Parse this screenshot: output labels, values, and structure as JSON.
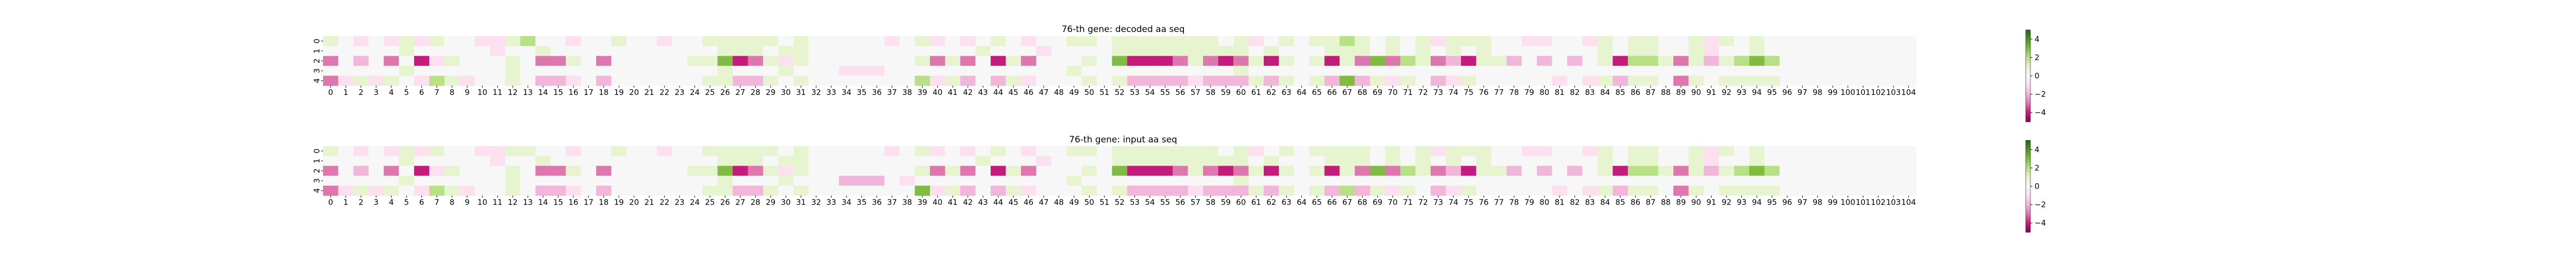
{
  "chart_data": [
    {
      "type": "heatmap",
      "title": "76-th gene: decoded aa seq",
      "xlabel": "",
      "ylabel": "",
      "x_ticks": [
        "0",
        "1",
        "2",
        "3",
        "4",
        "5",
        "6",
        "7",
        "8",
        "9",
        "10",
        "11",
        "12",
        "13",
        "14",
        "15",
        "16",
        "17",
        "18",
        "19",
        "20",
        "21",
        "22",
        "23",
        "24",
        "25",
        "26",
        "27",
        "28",
        "29",
        "30",
        "31",
        "32",
        "33",
        "34",
        "35",
        "36",
        "37",
        "38",
        "39",
        "40",
        "41",
        "42",
        "43",
        "44",
        "45",
        "46",
        "47",
        "48",
        "49",
        "50",
        "51",
        "52",
        "53",
        "54",
        "55",
        "56",
        "57",
        "58",
        "59",
        "60",
        "61",
        "62",
        "63",
        "64",
        "65",
        "66",
        "67",
        "68",
        "69",
        "70",
        "71",
        "72",
        "73",
        "74",
        "75",
        "76",
        "77",
        "78",
        "79",
        "80",
        "81",
        "82",
        "83",
        "84",
        "85",
        "86",
        "87",
        "88",
        "89",
        "90",
        "91",
        "92",
        "93",
        "94",
        "95",
        "96",
        "97",
        "98",
        "99",
        "100",
        "101",
        "102",
        "103",
        "104"
      ],
      "y_ticks": [
        "0",
        "1",
        "2",
        "3",
        "4"
      ],
      "colormap": "PiYG",
      "colorbar_ticks": [
        4,
        2,
        0,
        -2,
        -4
      ],
      "vmin": -5,
      "vmax": 5,
      "rows": [
        [
          1,
          0,
          -1,
          0,
          -1,
          1,
          -1,
          1,
          0,
          0,
          -1,
          -1,
          1,
          2,
          0,
          0,
          -1,
          0,
          0,
          1,
          0,
          0,
          -1,
          0,
          0,
          1,
          1,
          1,
          1,
          1,
          0,
          1,
          0,
          0,
          0,
          0,
          0,
          -1,
          0,
          1,
          -1,
          0,
          -1,
          0,
          1,
          0,
          -1,
          0,
          0,
          1,
          1,
          0,
          1,
          1,
          1,
          1,
          1,
          1,
          1,
          0,
          1,
          -1,
          0,
          1,
          0,
          1,
          1,
          2,
          1,
          0,
          1,
          0,
          1,
          -1,
          1,
          1,
          1,
          0,
          0,
          -1,
          -1,
          0,
          0,
          -1,
          1,
          0,
          1,
          1,
          0,
          0,
          1,
          -1,
          1,
          0,
          1,
          0,
          0,
          0,
          0,
          0,
          0,
          0,
          0,
          0,
          0
        ],
        [
          0,
          0,
          0,
          0,
          0,
          1,
          0,
          0,
          0,
          0,
          0,
          -1,
          0,
          0,
          1,
          0,
          0,
          0,
          0,
          0,
          0,
          0,
          0,
          0,
          0,
          0,
          1,
          1,
          1,
          0,
          1,
          1,
          0,
          0,
          0,
          0,
          0,
          0,
          0,
          0,
          0,
          0,
          0,
          1,
          0,
          0,
          0,
          -1,
          0,
          0,
          0,
          0,
          1,
          1,
          1,
          1,
          1,
          1,
          1,
          1,
          1,
          0,
          1,
          0,
          0,
          0,
          1,
          1,
          1,
          0,
          1,
          0,
          1,
          0,
          1,
          0,
          1,
          0,
          0,
          0,
          0,
          0,
          0,
          0,
          1,
          0,
          1,
          1,
          0,
          0,
          1,
          -1,
          0,
          0,
          1,
          0,
          0,
          0,
          0,
          0,
          0,
          0,
          0,
          0,
          0
        ],
        [
          -3,
          0,
          -2,
          0,
          -3,
          0,
          -4,
          -1,
          1,
          0,
          0,
          0,
          1,
          0,
          -3,
          -3,
          1,
          0,
          -3,
          0,
          0,
          0,
          0,
          0,
          1,
          1,
          3,
          -4,
          -3,
          1,
          -1,
          1,
          0,
          0,
          0,
          0,
          0,
          0,
          0,
          1,
          -3,
          1,
          -3,
          0,
          -4,
          1,
          -3,
          0,
          0,
          0,
          1,
          0,
          3,
          -4,
          -4,
          -4,
          -3,
          1,
          -3,
          -4,
          -3,
          1,
          -4,
          1,
          0,
          1,
          -4,
          1,
          -3,
          3,
          -3,
          2,
          1,
          -3,
          -2,
          -4,
          1,
          1,
          -2,
          0,
          -2,
          0,
          -2,
          0,
          1,
          -4,
          2,
          2,
          1,
          -3,
          1,
          -2,
          1,
          2,
          3,
          2,
          0,
          0,
          0,
          0,
          0,
          0,
          0,
          0,
          0
        ],
        [
          0,
          0,
          0,
          0,
          0,
          1,
          0,
          0,
          0,
          0,
          0,
          0,
          1,
          0,
          0,
          0,
          0,
          0,
          0,
          0,
          0,
          0,
          0,
          0,
          0,
          0,
          1,
          0,
          0,
          0,
          1,
          0,
          0,
          0,
          -1,
          -1,
          -1,
          0,
          0,
          0,
          0,
          0,
          0,
          0,
          0,
          0,
          0,
          0,
          0,
          1,
          0,
          0,
          0,
          0,
          0,
          0,
          0,
          0,
          0,
          0,
          1,
          0,
          0,
          0,
          0,
          0,
          0,
          0,
          0,
          0,
          0,
          0,
          0,
          0,
          0,
          0,
          0,
          0,
          0,
          0,
          0,
          0,
          0,
          0,
          0,
          0,
          0,
          0,
          0,
          0,
          0,
          0,
          0,
          0,
          0,
          0,
          0,
          0,
          0,
          0,
          0,
          0,
          0,
          0,
          0
        ],
        [
          -3,
          -1,
          1,
          -1,
          1,
          0,
          -1,
          2,
          1,
          -1,
          0,
          0,
          1,
          0,
          -2,
          -2,
          -1,
          0,
          -2,
          0,
          0,
          0,
          0,
          0,
          0,
          1,
          1,
          -2,
          -2,
          1,
          0,
          1,
          0,
          0,
          0,
          0,
          0,
          0,
          0,
          2,
          -1,
          1,
          -2,
          0,
          -2,
          1,
          -1,
          0,
          0,
          0,
          1,
          0,
          1,
          -2,
          -2,
          -2,
          -2,
          -1,
          -2,
          -2,
          -2,
          1,
          -2,
          1,
          0,
          1,
          -2,
          3,
          -2,
          1,
          -1,
          1,
          0,
          -2,
          -1,
          1,
          0,
          0,
          0,
          0,
          0,
          -1,
          0,
          -1,
          1,
          -2,
          1,
          1,
          0,
          -3,
          1,
          0,
          1,
          1,
          1,
          1,
          0,
          0,
          0,
          0,
          0,
          0,
          0,
          0,
          0
        ]
      ]
    },
    {
      "type": "heatmap",
      "title": "76-th gene: input aa seq",
      "xlabel": "",
      "ylabel": "",
      "x_ticks": [
        "0",
        "1",
        "2",
        "3",
        "4",
        "5",
        "6",
        "7",
        "8",
        "9",
        "10",
        "11",
        "12",
        "13",
        "14",
        "15",
        "16",
        "17",
        "18",
        "19",
        "20",
        "21",
        "22",
        "23",
        "24",
        "25",
        "26",
        "27",
        "28",
        "29",
        "30",
        "31",
        "32",
        "33",
        "34",
        "35",
        "36",
        "37",
        "38",
        "39",
        "40",
        "41",
        "42",
        "43",
        "44",
        "45",
        "46",
        "47",
        "48",
        "49",
        "50",
        "51",
        "52",
        "53",
        "54",
        "55",
        "56",
        "57",
        "58",
        "59",
        "60",
        "61",
        "62",
        "63",
        "64",
        "65",
        "66",
        "67",
        "68",
        "69",
        "70",
        "71",
        "72",
        "73",
        "74",
        "75",
        "76",
        "77",
        "78",
        "79",
        "80",
        "81",
        "82",
        "83",
        "84",
        "85",
        "86",
        "87",
        "88",
        "89",
        "90",
        "91",
        "92",
        "93",
        "94",
        "95",
        "96",
        "97",
        "98",
        "99",
        "100",
        "101",
        "102",
        "103",
        "104"
      ],
      "y_ticks": [
        "0",
        "1",
        "2",
        "3",
        "4"
      ],
      "colormap": "PiYG",
      "colorbar_ticks": [
        4,
        2,
        0,
        -2,
        -4
      ],
      "vmin": -5,
      "vmax": 5,
      "rows": [
        [
          1,
          0,
          -1,
          0,
          -1,
          1,
          -1,
          1,
          0,
          0,
          -1,
          -1,
          1,
          1,
          0,
          0,
          -1,
          0,
          0,
          1,
          0,
          0,
          -1,
          0,
          0,
          1,
          1,
          1,
          1,
          1,
          0,
          1,
          0,
          0,
          0,
          0,
          0,
          -1,
          0,
          1,
          -1,
          0,
          -1,
          0,
          1,
          0,
          -1,
          0,
          0,
          1,
          1,
          0,
          1,
          1,
          1,
          1,
          1,
          1,
          1,
          0,
          1,
          -1,
          0,
          1,
          0,
          1,
          1,
          1,
          1,
          0,
          1,
          0,
          1,
          -1,
          1,
          1,
          1,
          0,
          0,
          -1,
          -1,
          0,
          0,
          -1,
          1,
          0,
          1,
          1,
          0,
          0,
          1,
          -1,
          1,
          0,
          1,
          0,
          0,
          0,
          0,
          0,
          0,
          0,
          0,
          0,
          0
        ],
        [
          0,
          0,
          0,
          0,
          0,
          1,
          0,
          0,
          0,
          0,
          0,
          -1,
          0,
          0,
          1,
          0,
          0,
          0,
          0,
          0,
          0,
          0,
          0,
          0,
          0,
          0,
          1,
          1,
          1,
          0,
          1,
          1,
          0,
          0,
          0,
          0,
          0,
          0,
          0,
          0,
          0,
          0,
          0,
          1,
          0,
          0,
          0,
          -1,
          0,
          0,
          0,
          0,
          1,
          1,
          1,
          1,
          1,
          1,
          1,
          1,
          1,
          0,
          1,
          0,
          0,
          0,
          1,
          1,
          1,
          0,
          1,
          0,
          1,
          0,
          1,
          0,
          1,
          0,
          0,
          0,
          0,
          0,
          0,
          0,
          1,
          0,
          1,
          1,
          0,
          0,
          1,
          -1,
          0,
          0,
          1,
          0,
          0,
          0,
          0,
          0,
          0,
          0,
          0,
          0,
          0
        ],
        [
          -3,
          0,
          -2,
          0,
          -3,
          0,
          -4,
          -1,
          1,
          0,
          0,
          0,
          1,
          0,
          -3,
          -3,
          1,
          0,
          -3,
          0,
          0,
          0,
          0,
          0,
          1,
          1,
          3,
          -4,
          -3,
          1,
          -1,
          1,
          0,
          0,
          0,
          0,
          0,
          0,
          0,
          1,
          -3,
          1,
          -3,
          0,
          -4,
          1,
          -3,
          0,
          0,
          0,
          1,
          0,
          3,
          -4,
          -4,
          -4,
          -3,
          1,
          -3,
          -4,
          -3,
          1,
          -4,
          1,
          0,
          1,
          -4,
          1,
          -3,
          3,
          -3,
          2,
          1,
          -3,
          -2,
          -4,
          1,
          1,
          -2,
          0,
          -2,
          0,
          -2,
          0,
          1,
          -4,
          2,
          2,
          1,
          -3,
          1,
          -2,
          1,
          2,
          3,
          2,
          0,
          0,
          0,
          0,
          0,
          0,
          0,
          0,
          0
        ],
        [
          0,
          0,
          0,
          0,
          0,
          1,
          0,
          0,
          0,
          0,
          0,
          0,
          1,
          0,
          0,
          0,
          0,
          0,
          0,
          0,
          0,
          0,
          0,
          0,
          0,
          0,
          1,
          0,
          0,
          0,
          1,
          0,
          0,
          0,
          -2,
          -2,
          -2,
          0,
          -1,
          0,
          0,
          0,
          0,
          0,
          0,
          0,
          0,
          0,
          0,
          1,
          0,
          0,
          0,
          0,
          0,
          0,
          0,
          0,
          0,
          0,
          1,
          0,
          0,
          0,
          0,
          0,
          0,
          0,
          0,
          0,
          0,
          0,
          0,
          0,
          0,
          0,
          0,
          0,
          0,
          0,
          0,
          0,
          0,
          0,
          0,
          0,
          0,
          0,
          0,
          0,
          0,
          0,
          0,
          0,
          0,
          0,
          0,
          0,
          0,
          0,
          0,
          0,
          0,
          0,
          0
        ],
        [
          -3,
          -1,
          1,
          -1,
          1,
          0,
          -1,
          2,
          1,
          -1,
          0,
          0,
          1,
          0,
          -2,
          -2,
          -1,
          0,
          -2,
          0,
          0,
          0,
          0,
          0,
          0,
          1,
          1,
          -2,
          -2,
          1,
          0,
          1,
          0,
          0,
          0,
          0,
          0,
          0,
          0,
          3,
          -1,
          1,
          -2,
          0,
          -2,
          1,
          -1,
          0,
          0,
          0,
          1,
          0,
          1,
          -2,
          -2,
          -2,
          -2,
          -1,
          -2,
          -2,
          -2,
          1,
          -2,
          1,
          0,
          1,
          -2,
          2,
          -2,
          1,
          -1,
          1,
          0,
          -2,
          -1,
          1,
          0,
          0,
          0,
          0,
          0,
          -1,
          0,
          -1,
          1,
          -2,
          1,
          1,
          0,
          -3,
          1,
          0,
          1,
          1,
          1,
          1,
          0,
          0,
          0,
          0,
          0,
          0,
          0,
          0,
          0
        ]
      ]
    }
  ]
}
